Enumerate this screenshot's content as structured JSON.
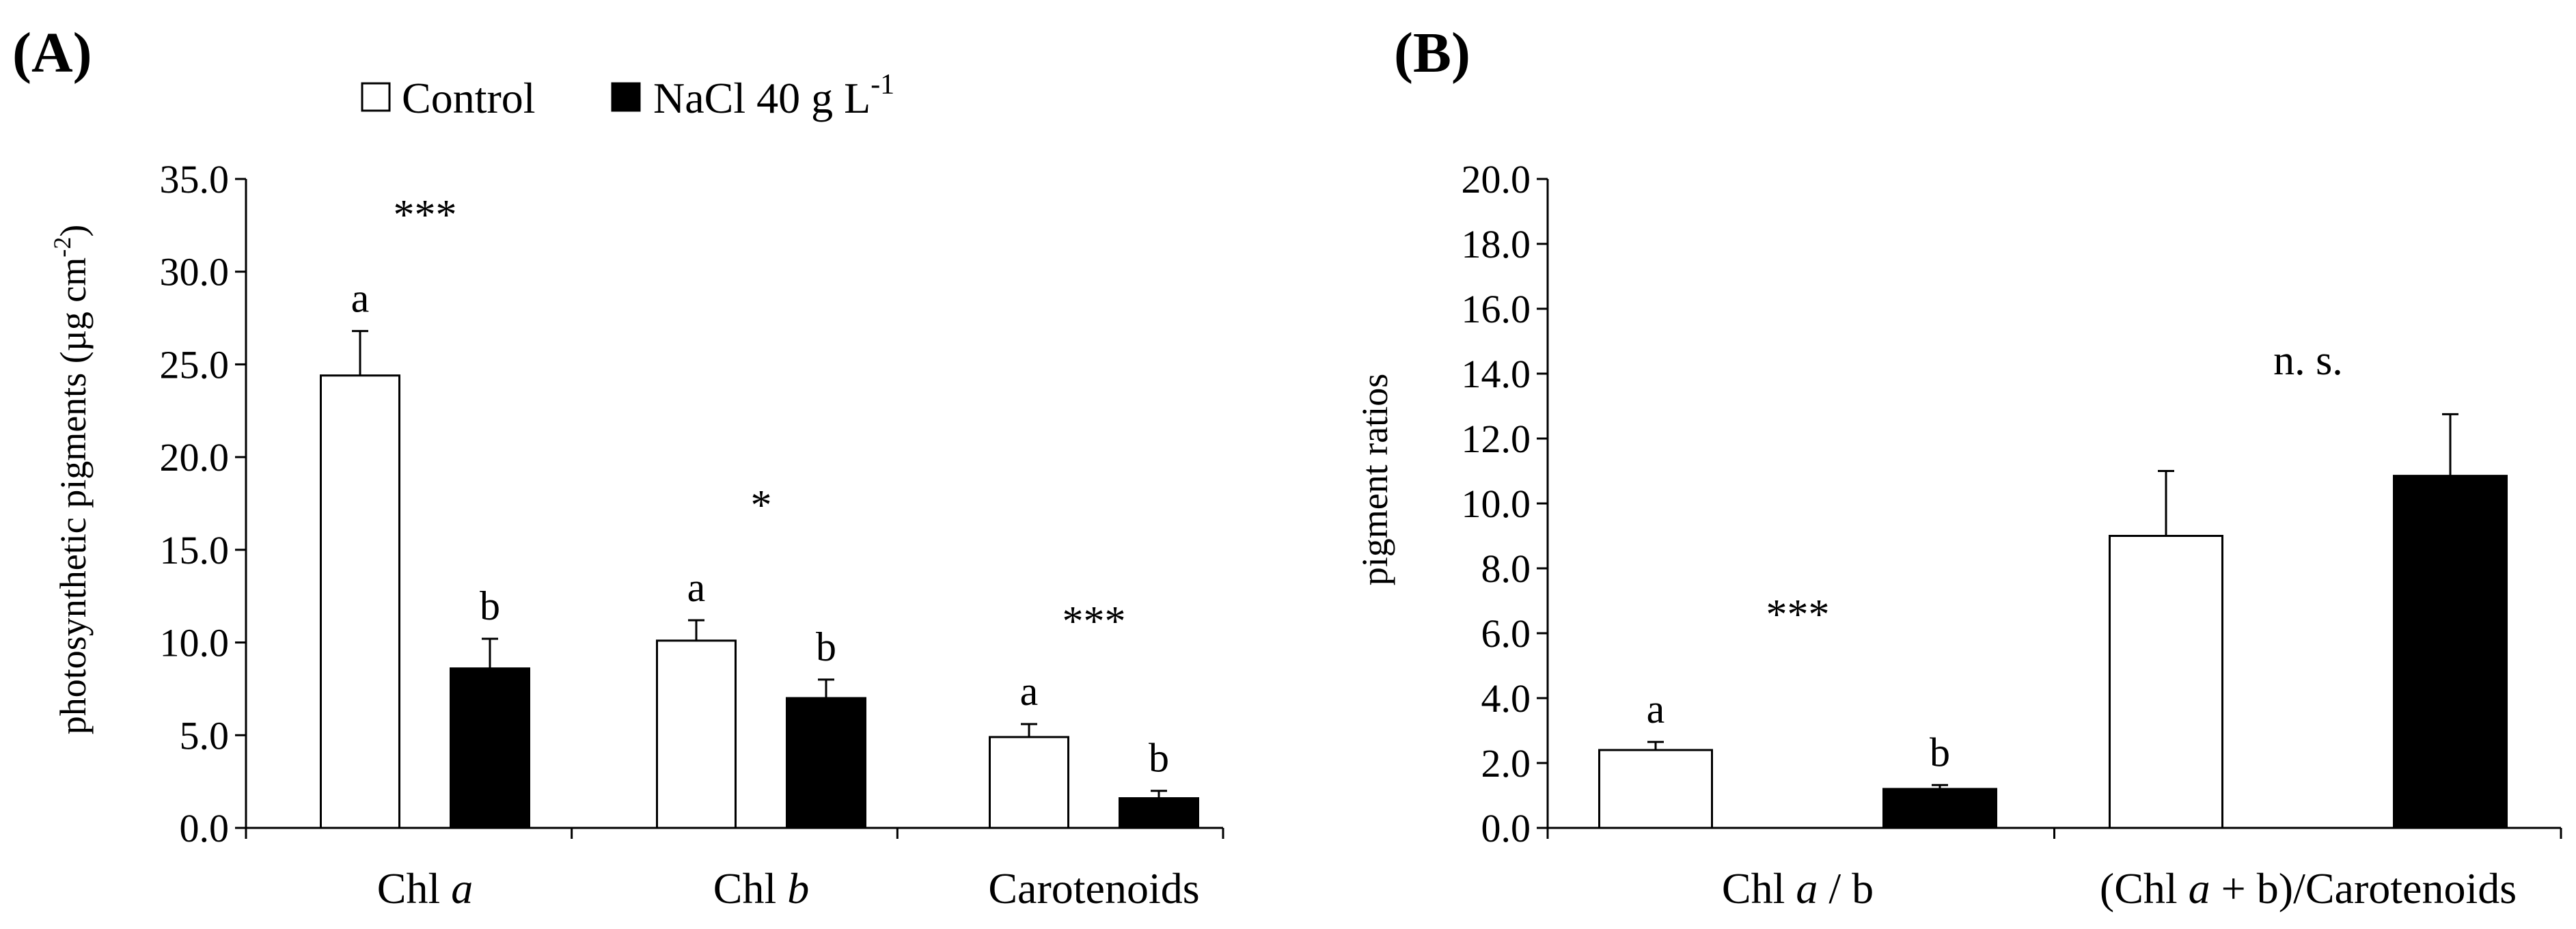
{
  "legend": {
    "control_label": "Control",
    "nacl_label_main": "NaCl 40 g L",
    "nacl_label_sup": "-1",
    "control_color": "#ffffff",
    "nacl_color": "#000000"
  },
  "chart_data": [
    {
      "panel_label": "(A)",
      "type": "bar",
      "ylabel_main": "photosynthetic pigments (µg cm",
      "ylabel_sup": "-2",
      "ylabel_end": ")",
      "ylim": [
        0,
        35
      ],
      "yticks": [
        "0.0",
        "5.0",
        "10.0",
        "15.0",
        "20.0",
        "25.0",
        "30.0",
        "35.0"
      ],
      "categories": [
        {
          "pre": "Chl ",
          "ital": "a",
          "post": ""
        },
        {
          "pre": "Chl ",
          "ital": "b",
          "post": ""
        },
        {
          "pre": "Carotenoids",
          "ital": "",
          "post": ""
        }
      ],
      "series": [
        {
          "name": "Control",
          "values": [
            24.4,
            10.1,
            4.9
          ],
          "errors": [
            2.4,
            1.1,
            0.7
          ]
        },
        {
          "name": "NaCl 40 g L-1",
          "values": [
            8.6,
            7.0,
            1.6
          ],
          "errors": [
            1.6,
            1.0,
            0.4
          ]
        }
      ],
      "group_letters": [
        [
          "a",
          "b"
        ],
        [
          "a",
          "b"
        ],
        [
          "a",
          "b"
        ]
      ],
      "significance": [
        "***",
        "*",
        "***"
      ]
    },
    {
      "panel_label": "(B)",
      "type": "bar",
      "ylabel_main": "pigment ratios",
      "ylabel_sup": "",
      "ylabel_end": "",
      "ylim": [
        0,
        20
      ],
      "yticks": [
        "0.0",
        "2.0",
        "4.0",
        "6.0",
        "8.0",
        "10.0",
        "12.0",
        "14.0",
        "16.0",
        "18.0",
        "20.0"
      ],
      "categories": [
        {
          "pre": "Chl ",
          "ital": "a",
          "post": " / b"
        },
        {
          "pre": "(Chl ",
          "ital": "a",
          "post": " + b)/Carotenoids"
        }
      ],
      "series": [
        {
          "name": "Control",
          "values": [
            2.4,
            9.0
          ],
          "errors": [
            0.25,
            2.0
          ]
        },
        {
          "name": "NaCl 40 g L-1",
          "values": [
            1.2,
            10.85
          ],
          "errors": [
            0.12,
            1.9
          ]
        }
      ],
      "group_letters": [
        [
          "a",
          "b"
        ],
        [
          "",
          ""
        ]
      ],
      "significance": [
        "***",
        "n. s."
      ]
    }
  ]
}
